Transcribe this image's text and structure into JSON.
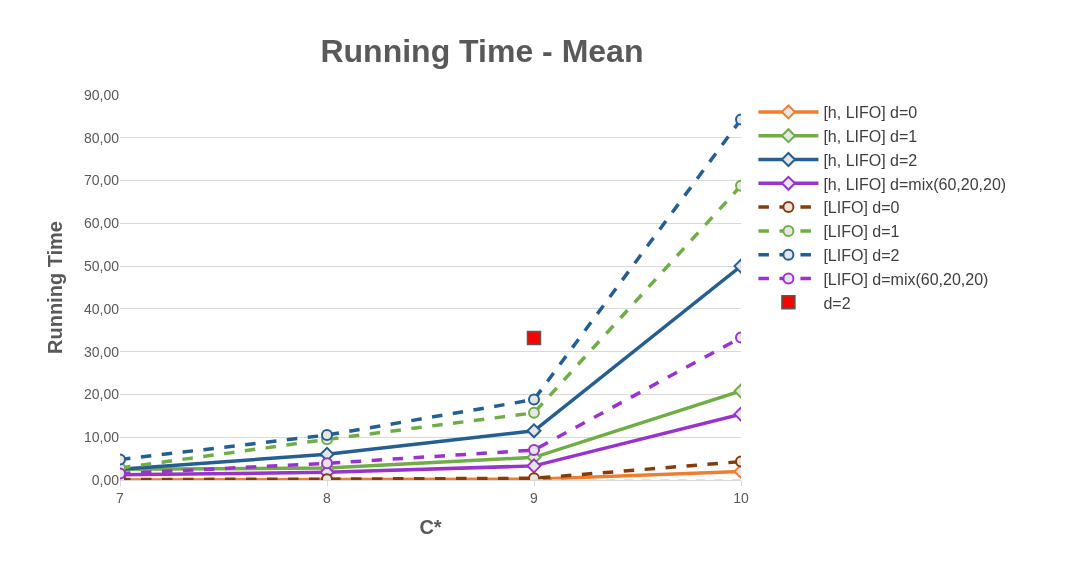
{
  "chart_data": {
    "type": "line",
    "title": "Running Time - Mean",
    "xlabel": "C*",
    "ylabel": "Running Time",
    "x": [
      7,
      8,
      9,
      10
    ],
    "xlim": [
      7,
      10
    ],
    "xticks": [
      7,
      8,
      9,
      10
    ],
    "ylim": [
      0,
      90
    ],
    "yticks": [
      {
        "value": 0,
        "label": "0,00"
      },
      {
        "value": 10,
        "label": "10,00"
      },
      {
        "value": 20,
        "label": "20,00"
      },
      {
        "value": 30,
        "label": "30,00"
      },
      {
        "value": 40,
        "label": "40,00"
      },
      {
        "value": 50,
        "label": "50,00"
      },
      {
        "value": 60,
        "label": "60,00"
      },
      {
        "value": 70,
        "label": "70,00"
      },
      {
        "value": 80,
        "label": "80,00"
      },
      {
        "value": 90,
        "label": "90,00"
      }
    ],
    "grid": "y",
    "legend": "right",
    "series": [
      {
        "name": "[h, LIFO] d=0",
        "color": "#ed7d31",
        "values": [
          0,
          0.1,
          0.2,
          2.0
        ],
        "marker": "diamond",
        "line_style": "solid"
      },
      {
        "name": "[h, LIFO] d=1",
        "color": "#70ad47",
        "values": [
          2.5,
          2.8,
          5.3,
          20.8
        ],
        "marker": "diamond",
        "line_style": "solid"
      },
      {
        "name": "[h, LIFO] d=2",
        "color": "#255e91",
        "values": [
          2.5,
          6.0,
          11.5,
          50.0
        ],
        "marker": "diamond",
        "line_style": "solid"
      },
      {
        "name": "[h, LIFO] d=mix(60,20,20)",
        "color": "#9933cc",
        "values": [
          1.2,
          1.8,
          3.3,
          15.4
        ],
        "marker": "diamond",
        "line_style": "solid"
      },
      {
        "name": "[LIFO] d=0",
        "color": "#843c0c",
        "values": [
          0.1,
          0.2,
          0.4,
          4.3
        ],
        "marker": "circle",
        "line_style": "dashed"
      },
      {
        "name": "[LIFO] d=1",
        "color": "#70ad47",
        "values": [
          2.8,
          9.5,
          15.7,
          68.8
        ],
        "marker": "circle",
        "line_style": "dashed"
      },
      {
        "name": "[LIFO] d=2",
        "color": "#255e91",
        "values": [
          4.8,
          10.5,
          18.8,
          84.3
        ],
        "marker": "circle",
        "line_style": "dashed"
      },
      {
        "name": "[LIFO] d=mix(60,20,20)",
        "color": "#9933cc",
        "values": [
          1.5,
          3.9,
          7.0,
          33.3
        ],
        "marker": "circle",
        "line_style": "dashed"
      },
      {
        "name": "d=2",
        "type": "scatter",
        "color": "#ff0000",
        "values": [
          null,
          null,
          33.2,
          null
        ],
        "marker": "square"
      },
      {
        "color": "#d9d9d9",
        "values": [
          null,
          null,
          0,
          0
        ],
        "marker": "none",
        "line_style": "dashed"
      }
    ]
  }
}
